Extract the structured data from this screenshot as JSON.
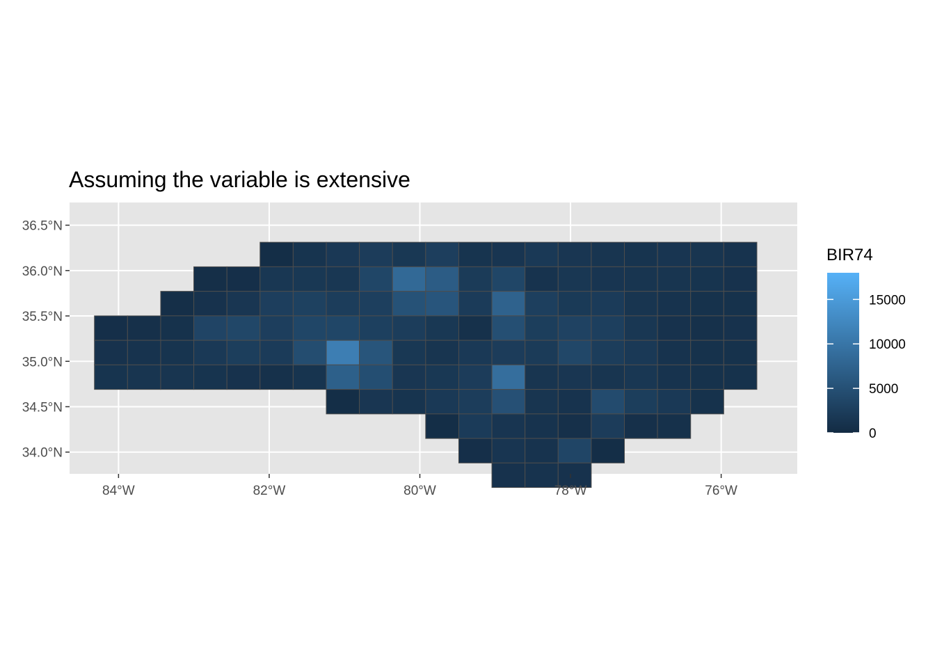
{
  "chart_data": {
    "type": "heatmap",
    "title": "Assuming the variable is extensive",
    "x_tick_labels": [
      "84°W",
      "82°W",
      "80°W",
      "78°W",
      "76°W"
    ],
    "x_ticks": [
      -84,
      -82,
      -80,
      -78,
      -76
    ],
    "y_tick_labels": [
      "34.0°N",
      "34.5°N",
      "35.0°N",
      "35.5°N",
      "36.0°N",
      "36.5°N"
    ],
    "y_ticks": [
      34.0,
      34.5,
      35.0,
      35.5,
      36.0,
      36.5
    ],
    "xlim": [
      -84.65,
      -74.99
    ],
    "ylim": [
      33.76,
      36.75
    ],
    "grid": true,
    "grid_origin": [
      -84.32,
      33.88
    ],
    "cell_width_deg": 0.4397,
    "cell_height_deg": 0.2702,
    "legend": {
      "title": "BIR74",
      "breaks": [
        0,
        5000,
        10000,
        15000
      ],
      "labels": [
        "0",
        "5000",
        "10000",
        "15000"
      ],
      "limits": [
        0,
        18000
      ],
      "color_low": "#132B43",
      "color_high": "#56B1F7",
      "position": "right"
    },
    "colors": {
      "panel_background": "#E5E5E5",
      "grid_line": "#FFFFFF",
      "cell_border": "#4D4D4D"
    },
    "cell_rows": [
      {
        "row": 8,
        "start_col": 5,
        "values": [
          400,
          1200,
          1800,
          2300,
          1700,
          2600,
          1200,
          1400,
          1900,
          1500,
          1300,
          1200,
          1400,
          1300,
          1100
        ]
      },
      {
        "row": 7,
        "start_col": 3,
        "values": [
          500,
          600,
          1600,
          1700,
          1600,
          3600,
          8300,
          6600,
          2100,
          3600,
          1100,
          1600,
          1400,
          1300,
          1300,
          1200,
          1000
        ]
      },
      {
        "row": 6,
        "start_col": 2,
        "values": [
          500,
          1000,
          1500,
          2600,
          2900,
          2400,
          2700,
          5200,
          5700,
          2200,
          7400,
          2700,
          2000,
          2200,
          1300,
          1100,
          900,
          900
        ]
      },
      {
        "row": 5,
        "start_col": 0,
        "values": [
          600,
          700,
          900,
          3400,
          3700,
          2600,
          3600,
          3600,
          2800,
          2400,
          1700,
          800,
          4800,
          2500,
          3100,
          2700,
          1600,
          1000,
          800,
          1000
        ]
      },
      {
        "row": 4,
        "start_col": 0,
        "values": [
          1000,
          1100,
          1200,
          1900,
          2500,
          2200,
          4500,
          11200,
          5600,
          1700,
          1300,
          1900,
          2300,
          2100,
          3700,
          2400,
          1900,
          1100,
          900,
          900
        ]
      },
      {
        "row": 3,
        "start_col": 0,
        "values": [
          1200,
          1300,
          1300,
          1200,
          1000,
          800,
          1200,
          7100,
          4700,
          1500,
          1700,
          2300,
          9000,
          1300,
          1500,
          1300,
          1600,
          1100,
          900,
          900
        ]
      },
      {
        "row": 2,
        "start_col": 7,
        "values": [
          400,
          1500,
          1200,
          1900,
          2400,
          5000,
          1300,
          1100,
          4300,
          2500,
          1900,
          900
        ]
      },
      {
        "row": 1,
        "start_col": 10,
        "values": [
          400,
          2200,
          1400,
          1100,
          700,
          2300,
          700,
          800
        ]
      },
      {
        "row": 0,
        "start_col": 11,
        "values": [
          600,
          1400,
          1100,
          3500,
          400
        ]
      },
      {
        "row": -1,
        "start_col": 12,
        "values": [
          1000,
          1100,
          1000
        ]
      }
    ]
  }
}
